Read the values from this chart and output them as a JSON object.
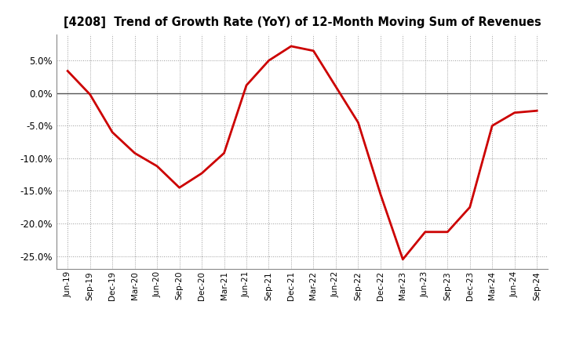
{
  "title": "[4208]  Trend of Growth Rate (YoY) of 12-Month Moving Sum of Revenues",
  "line_color": "#CC0000",
  "line_width": 2.0,
  "background_color": "#FFFFFF",
  "plot_bg_color": "#FFFFFF",
  "grid_color": "#999999",
  "zero_line_color": "#555555",
  "ylim": [
    -0.27,
    0.09
  ],
  "yticks": [
    0.05,
    0.0,
    -0.05,
    -0.1,
    -0.15,
    -0.2,
    -0.25
  ],
  "x_labels": [
    "Jun-19",
    "Sep-19",
    "Dec-19",
    "Mar-20",
    "Jun-20",
    "Sep-20",
    "Dec-20",
    "Mar-21",
    "Jun-21",
    "Sep-21",
    "Dec-21",
    "Mar-22",
    "Jun-22",
    "Sep-22",
    "Dec-22",
    "Mar-23",
    "Jun-23",
    "Sep-23",
    "Dec-23",
    "Mar-24",
    "Jun-24",
    "Sep-24"
  ],
  "values": [
    0.034,
    -0.002,
    -0.06,
    -0.092,
    -0.112,
    -0.145,
    -0.123,
    -0.092,
    0.012,
    0.05,
    0.072,
    0.065,
    0.01,
    -0.045,
    -0.155,
    -0.255,
    -0.213,
    -0.213,
    -0.175,
    -0.05,
    -0.03,
    -0.027
  ]
}
